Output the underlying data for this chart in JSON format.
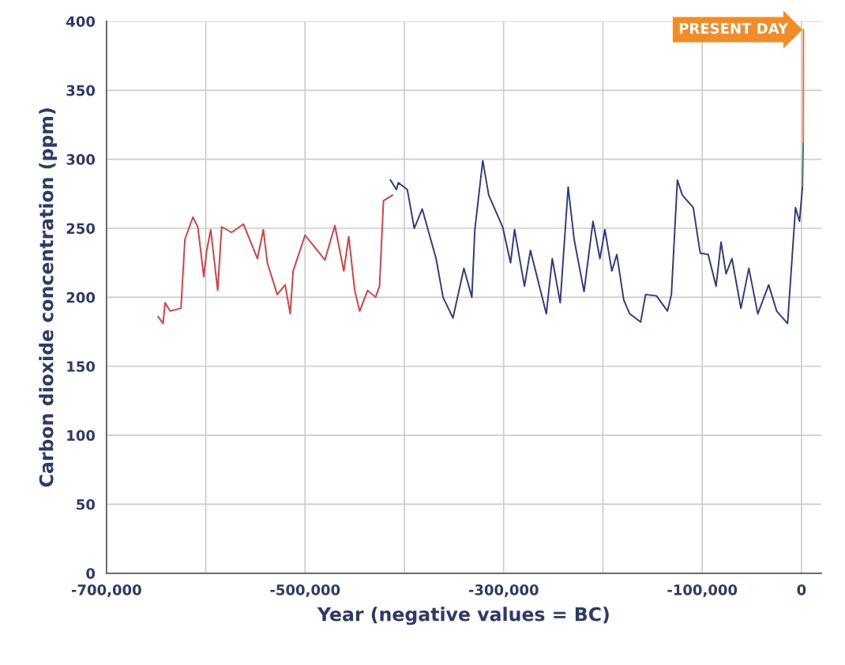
{
  "chart_data": {
    "type": "line",
    "xlabel": "Year (negative values = BC)",
    "ylabel": "Carbon dioxide concentration (ppm)",
    "xlim": [
      -700000,
      20000
    ],
    "ylim": [
      0,
      400
    ],
    "xticks": [
      {
        "value": -700000,
        "label": "-700,000"
      },
      {
        "value": -600000,
        "label": null
      },
      {
        "value": -500000,
        "label": "-500,000"
      },
      {
        "value": -400000,
        "label": null
      },
      {
        "value": -300000,
        "label": "-300,000"
      },
      {
        "value": -200000,
        "label": null
      },
      {
        "value": -100000,
        "label": "-100,000"
      },
      0
    ],
    "yticks": [
      0,
      50,
      100,
      150,
      200,
      250,
      300,
      350,
      400
    ],
    "grid": true,
    "legend": false,
    "series": [
      {
        "color": "#e03c3c",
        "x": [
          -648000,
          -643000,
          -641000,
          -636000,
          -625000,
          -621000,
          -613000,
          -608000,
          -602000,
          -599000,
          -595000,
          -588000,
          -584000,
          -574000,
          -562000,
          -548000,
          -542000,
          -538000,
          -528000,
          -520000,
          -515000,
          -512000,
          -500000,
          -490000,
          -480000,
          -470000,
          -461000,
          -456000,
          -450000,
          -445000,
          -437000,
          -429000,
          -425000,
          -421000,
          -412000
        ],
        "values": [
          186,
          181,
          196,
          190,
          192,
          242,
          258,
          251,
          215,
          234,
          249,
          205,
          251,
          247,
          253,
          228,
          249,
          225,
          202,
          209,
          188,
          219,
          245,
          236,
          227,
          252,
          219,
          244,
          205,
          190,
          205,
          200,
          208,
          270,
          274
        ]
      },
      {
        "color": "#2e3a87",
        "x": [
          -414000,
          -408000,
          -406000,
          -397000,
          -390000,
          -382000,
          -368000,
          -361000,
          -351000,
          -340000,
          -332000,
          -329000,
          -321000,
          -315000,
          -301000,
          -293000,
          -289000,
          -279000,
          -273000,
          -257000,
          -251000,
          -243000,
          -235000,
          -229000,
          -219000,
          -210000,
          -203000,
          -198000,
          -191000,
          -186000,
          -179000,
          -173000,
          -162000,
          -157000,
          -146000,
          -135000,
          -131000,
          -125000,
          -120000,
          -109000,
          -102000,
          -94000,
          -86000,
          -81000,
          -76000,
          -70000,
          -61000,
          -53000,
          -44000,
          -33000,
          -25000,
          -14000,
          -6000,
          -2000,
          1000
        ],
        "values": [
          285,
          278,
          283,
          278,
          250,
          264,
          228,
          200,
          185,
          221,
          200,
          249,
          299,
          274,
          251,
          225,
          249,
          208,
          234,
          188,
          228,
          196,
          280,
          242,
          204,
          255,
          228,
          249,
          219,
          231,
          198,
          188,
          182,
          202,
          201,
          190,
          202,
          285,
          274,
          265,
          232,
          231,
          208,
          240,
          217,
          228,
          192,
          221,
          188,
          209,
          190,
          181,
          265,
          255,
          280
        ]
      },
      {
        "color": "#3a7a5a",
        "x": [
          1000,
          1800
        ],
        "values": [
          280,
          312
        ]
      },
      {
        "color": "#e8704a",
        "x": [
          1800,
          2010
        ],
        "values": [
          312,
          394
        ]
      }
    ],
    "annotations": [
      {
        "text": "PRESENT DAY",
        "x": 2010,
        "y": 394
      }
    ]
  }
}
